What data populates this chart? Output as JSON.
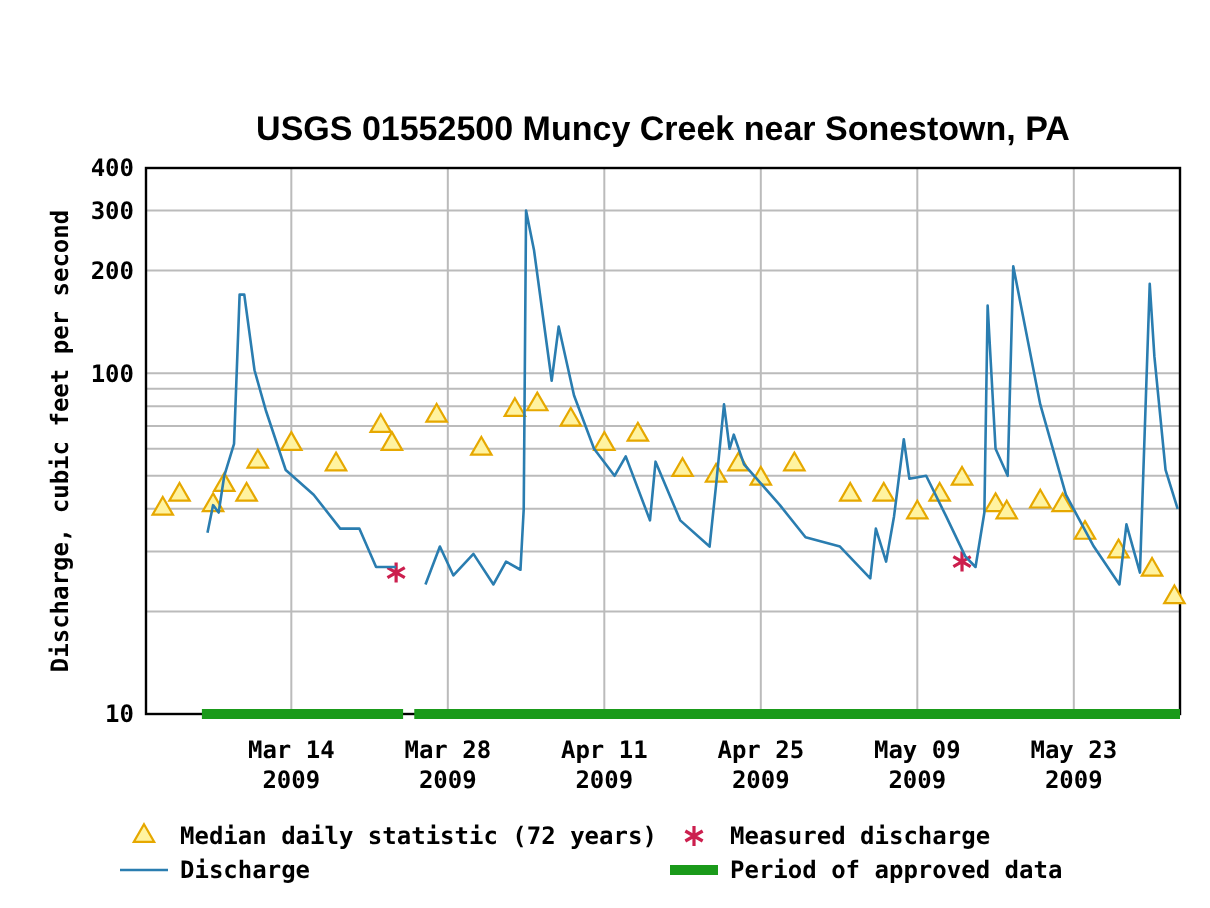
{
  "chart_data": {
    "type": "line",
    "title": "USGS 01552500 Muncy Creek near Sonestown, PA",
    "ylabel": "Discharge, cubic feet per second",
    "log": true,
    "grid": true,
    "legend": "bottom",
    "xlim": [
      "2009-03-01",
      "2009-06-01T12:00"
    ],
    "xticks": [
      {
        "value": "2009-03-14",
        "label": "Mar 14\n2009"
      },
      {
        "value": "2009-03-28",
        "label": "Mar 28\n2009"
      },
      {
        "value": "2009-04-11",
        "label": "Apr 11\n2009"
      },
      {
        "value": "2009-04-25",
        "label": "Apr 25\n2009"
      },
      {
        "value": "2009-05-09",
        "label": "May 09\n2009"
      },
      {
        "value": "2009-05-23",
        "label": "May 23\n2009"
      }
    ],
    "ylim": [
      10,
      400
    ],
    "yticks": [
      10,
      {
        "value": 20,
        "label": null
      },
      {
        "value": 30,
        "label": null
      },
      {
        "value": 40,
        "label": null
      },
      {
        "value": 50,
        "label": null
      },
      {
        "value": 60,
        "label": null
      },
      {
        "value": 70,
        "label": null
      },
      {
        "value": 80,
        "label": null
      },
      {
        "value": 90,
        "label": null
      },
      100,
      200,
      300,
      400
    ],
    "series": [
      {
        "name": "Median daily statistic (72 years)",
        "type": "scatter",
        "marker": "triangle",
        "color": "#e6a800",
        "x": [
          "2009-03-02T12:00",
          "2009-03-04",
          "2009-03-07",
          "2009-03-08",
          "2009-03-10",
          "2009-03-11",
          "2009-03-14",
          "2009-03-18",
          "2009-03-22",
          "2009-03-23",
          "2009-03-27",
          "2009-03-31",
          "2009-04-03",
          "2009-04-05",
          "2009-04-08",
          "2009-04-11",
          "2009-04-14",
          "2009-04-18",
          "2009-04-21",
          "2009-04-23",
          "2009-04-25",
          "2009-04-28",
          "2009-05-03",
          "2009-05-06",
          "2009-05-09",
          "2009-05-11",
          "2009-05-13",
          "2009-05-16",
          "2009-05-17",
          "2009-05-20",
          "2009-05-22",
          "2009-05-24",
          "2009-05-27",
          "2009-05-30",
          "2009-06-01"
        ],
        "values": [
          40,
          44,
          41,
          47,
          44,
          55,
          62,
          54,
          70,
          62,
          75,
          60,
          78,
          81,
          73,
          62,
          66,
          52,
          50,
          54,
          49,
          54,
          44,
          44,
          39,
          44,
          49,
          41,
          39,
          42,
          41,
          34,
          30,
          26.5,
          22
        ]
      },
      {
        "name": "Measured discharge",
        "type": "scatter",
        "marker": "cross",
        "color": "#cc1f4e",
        "x": [
          "2009-03-23T09:00",
          "2009-05-13"
        ],
        "values": [
          26,
          28
        ]
      },
      {
        "name": "Discharge",
        "marker": "none",
        "color": "#2a7db0",
        "x": [
          "2009-03-06T12:00",
          "2009-03-07",
          "2009-03-07T12:00",
          "2009-03-08",
          "2009-03-08T21:00",
          "2009-03-09T09:00",
          "2009-03-09T19:00",
          "2009-03-10T17:00",
          "2009-03-11T17:00",
          "2009-03-13T12:00",
          "2009-03-16",
          "2009-03-18T09:00",
          "2009-03-20T02:00",
          "2009-03-21T14:00",
          "2009-03-23T09:00",
          "2009-03-24T12:00",
          "2009-03-26",
          "2009-03-27T07:00",
          "2009-03-28T12:00",
          "2009-03-30T07:00",
          "2009-04-01T02:00",
          "2009-04-02T05:00",
          "2009-04-03T12:00",
          "2009-04-03T19:00",
          "2009-04-04",
          "2009-04-04T17:00",
          "2009-04-06T07:00",
          "2009-04-06T22:00",
          "2009-04-08T07:00",
          "2009-04-10T02:00",
          "2009-04-11T22:00",
          "2009-04-12T22:00",
          "2009-04-15T02:00",
          "2009-04-15T14:00",
          "2009-04-17T19:00",
          "2009-04-20T10:00",
          "2009-04-21",
          "2009-04-21T17:00",
          "2009-04-22T05:00",
          "2009-04-22T14:00",
          "2009-04-23T12:00",
          "2009-04-26T17:00",
          "2009-04-29",
          "2009-05-02T02:00",
          "2009-05-04T19:00",
          "2009-05-05T07:00",
          "2009-05-06T05:00",
          "2009-05-06T22:00",
          "2009-05-07T19:00",
          "2009-05-08T07:00",
          "2009-05-09T19:00",
          "2009-05-11T14:00",
          "2009-05-13T07:00",
          "2009-05-14T05:00",
          "2009-05-15",
          "2009-05-15T07:00",
          "2009-05-16",
          "2009-05-17T02:00",
          "2009-05-17T14:00",
          "2009-05-20",
          "2009-05-22T07:00",
          "2009-05-24T19:00",
          "2009-05-27T02:00",
          "2009-05-27T17:00",
          "2009-05-28T22:00",
          "2009-05-29T19:00",
          "2009-05-30T05:00",
          "2009-05-31T05:00",
          "2009-06-01T07:00"
        ],
        "values": [
          34,
          41,
          39,
          50,
          62,
          170,
          170,
          102,
          78,
          52,
          44,
          35,
          35,
          27,
          27,
          null,
          24,
          31,
          25.5,
          29.5,
          24,
          28,
          26.5,
          40,
          300,
          230,
          95,
          137,
          86,
          60,
          50,
          57,
          37,
          55,
          37,
          31,
          47,
          81,
          60,
          66,
          54,
          41,
          33,
          31,
          25,
          35,
          28,
          38,
          64,
          49,
          50,
          38,
          29,
          27,
          39,
          158,
          60,
          50,
          206,
          81,
          44,
          31,
          24,
          36,
          26,
          183,
          112,
          52,
          40
        ]
      },
      {
        "name": "Period of approved data",
        "marker": "none",
        "color": "#1a9a1a",
        "x": [
          "2009-03-06",
          "2009-03-24",
          "2009-03-24T12:00",
          "2009-03-25",
          "2009-06-01T12:00"
        ],
        "values": [
          10,
          10,
          null,
          10,
          10
        ]
      }
    ]
  }
}
